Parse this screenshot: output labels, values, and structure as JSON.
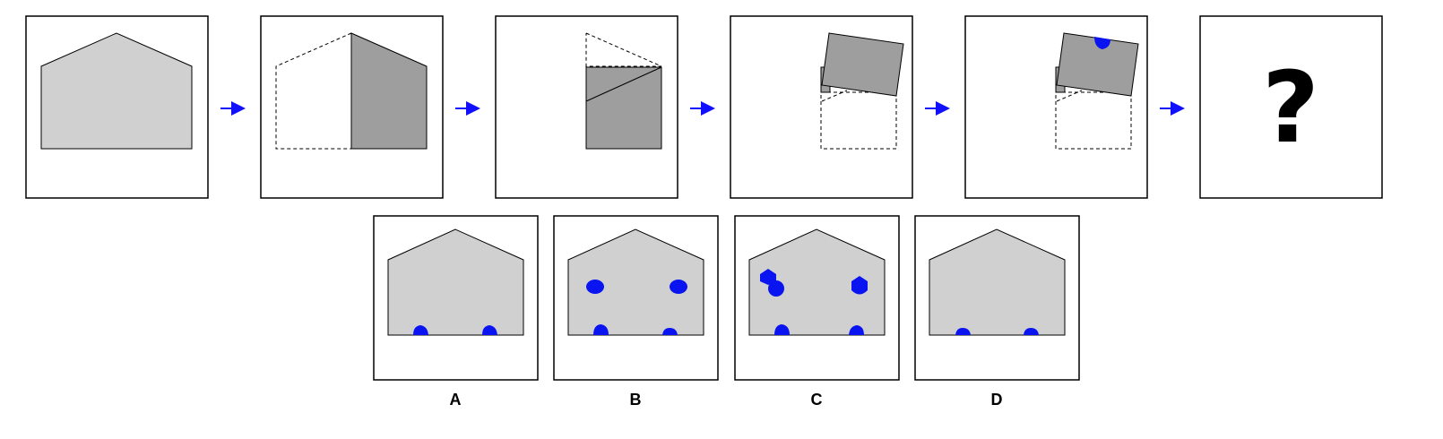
{
  "colors": {
    "paper_light": "#d0d0d0",
    "paper_folded": "#9e9e9e",
    "arrow": "#1010ff",
    "hole": "#0a14f0",
    "frame": "#000000"
  },
  "sequence": {
    "steps": [
      {
        "id": "step-1",
        "description_icon": "house-shape-icon"
      },
      {
        "id": "step-2",
        "description_icon": "fold-left-to-right-icon"
      },
      {
        "id": "step-3",
        "description_icon": "fold-top-down-icon"
      },
      {
        "id": "step-4",
        "description_icon": "fold-upward-icon"
      },
      {
        "id": "step-5",
        "description_icon": "punch-hole-icon"
      }
    ],
    "question_mark": "?"
  },
  "options": [
    {
      "label": "A"
    },
    {
      "label": "B"
    },
    {
      "label": "C"
    },
    {
      "label": "D"
    }
  ]
}
